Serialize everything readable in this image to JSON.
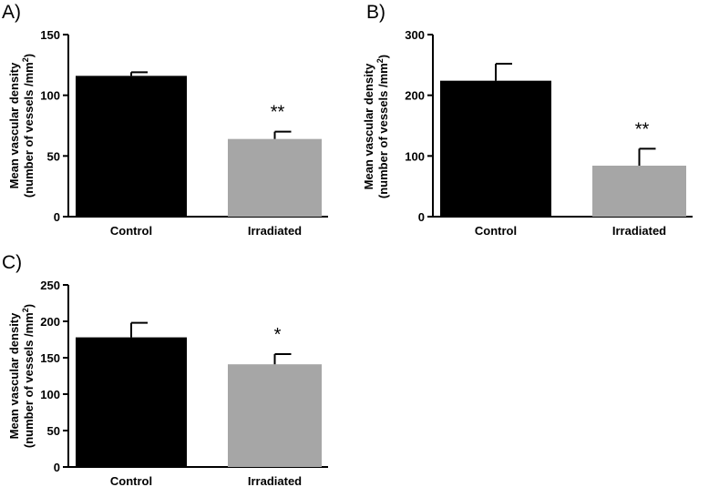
{
  "chart_data": [
    {
      "type": "bar",
      "panel_label": "A)",
      "categories": [
        "Control",
        "Irradiated"
      ],
      "values": [
        116,
        64
      ],
      "errors": [
        3,
        6
      ],
      "colors": [
        "#000000",
        "#a6a6a6"
      ],
      "significance": [
        "",
        "**"
      ],
      "ylabel_line1": "Mean vascular density",
      "ylabel_line2": "(number of vessels /mm",
      "ylabel_sup": "2",
      "ylabel_close": ")",
      "ylim": [
        0,
        150
      ],
      "yticks": [
        "0",
        "50",
        "100",
        "150"
      ],
      "ytick_values": [
        0,
        50,
        100,
        150
      ]
    },
    {
      "type": "bar",
      "panel_label": "B)",
      "categories": [
        "Control",
        "Irradiated"
      ],
      "values": [
        224,
        84
      ],
      "errors": [
        28,
        28
      ],
      "colors": [
        "#000000",
        "#a6a6a6"
      ],
      "significance": [
        "",
        "**"
      ],
      "ylabel_line1": "Mean vascular density",
      "ylabel_line2": "(number of vessels /mm",
      "ylabel_sup": "2",
      "ylabel_close": ")",
      "ylim": [
        0,
        300
      ],
      "yticks": [
        "0",
        "100",
        "200",
        "300"
      ],
      "ytick_values": [
        0,
        100,
        200,
        300
      ]
    },
    {
      "type": "bar",
      "panel_label": "C)",
      "categories": [
        "Control",
        "Irradiated"
      ],
      "values": [
        178,
        141
      ],
      "errors": [
        20,
        14
      ],
      "colors": [
        "#000000",
        "#a6a6a6"
      ],
      "significance": [
        "",
        "*"
      ],
      "ylabel_line1": "Mean vascular density",
      "ylabel_line2": "(number of vessels /mm",
      "ylabel_sup": "2",
      "ylabel_close": ")",
      "ylim": [
        0,
        250
      ],
      "yticks": [
        "0",
        "50",
        "100",
        "150",
        "200",
        "250"
      ],
      "ytick_values": [
        0,
        50,
        100,
        150,
        200,
        250
      ]
    }
  ]
}
